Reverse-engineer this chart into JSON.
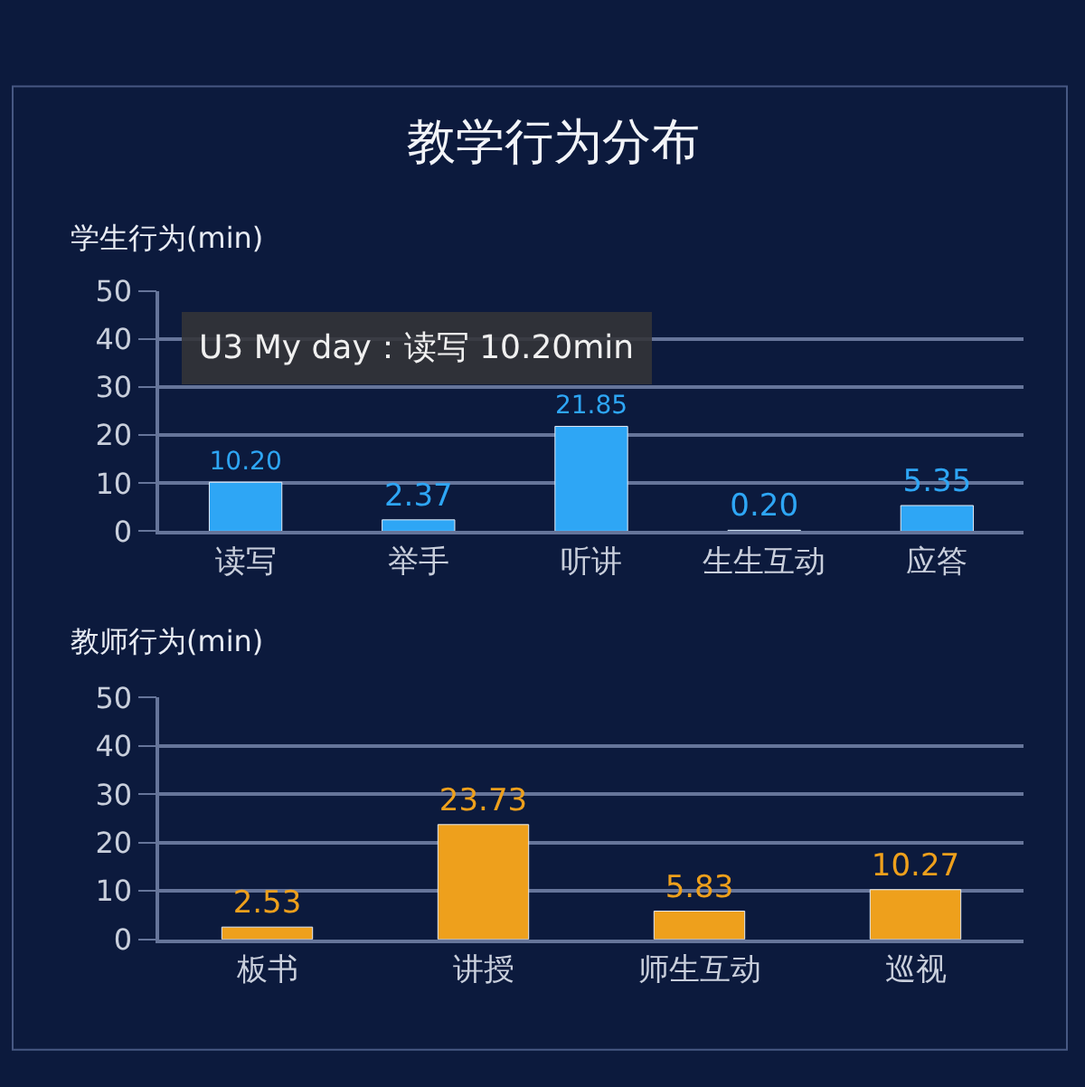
{
  "chart_data": [
    {
      "type": "bar",
      "title": "教学行为分布",
      "ylabel": "学生行为(min)",
      "categories": [
        "读写",
        "举手",
        "听讲",
        "生生互动",
        "应答"
      ],
      "values": [
        10.2,
        2.37,
        21.85,
        0.2,
        5.35
      ],
      "value_labels": [
        "10.20",
        "2.37",
        "21.85",
        "0.20",
        "5.35"
      ],
      "color": "#2ea6f5",
      "ylim": [
        0,
        50
      ],
      "yticks": [
        0,
        10,
        20,
        30,
        40,
        50
      ],
      "grid": "y",
      "annotations": [
        "U3 My day：读写 10.20min"
      ]
    },
    {
      "type": "bar",
      "ylabel": "教师行为(min)",
      "categories": [
        "板书",
        "讲授",
        "师生互动",
        "巡视"
      ],
      "values": [
        2.53,
        23.73,
        5.83,
        10.27
      ],
      "value_labels": [
        "2.53",
        "23.73",
        "5.83",
        "10.27"
      ],
      "color": "#eea01c",
      "ylim": [
        0,
        50
      ],
      "yticks": [
        0,
        10,
        20,
        30,
        40,
        50
      ],
      "grid": "y"
    }
  ]
}
